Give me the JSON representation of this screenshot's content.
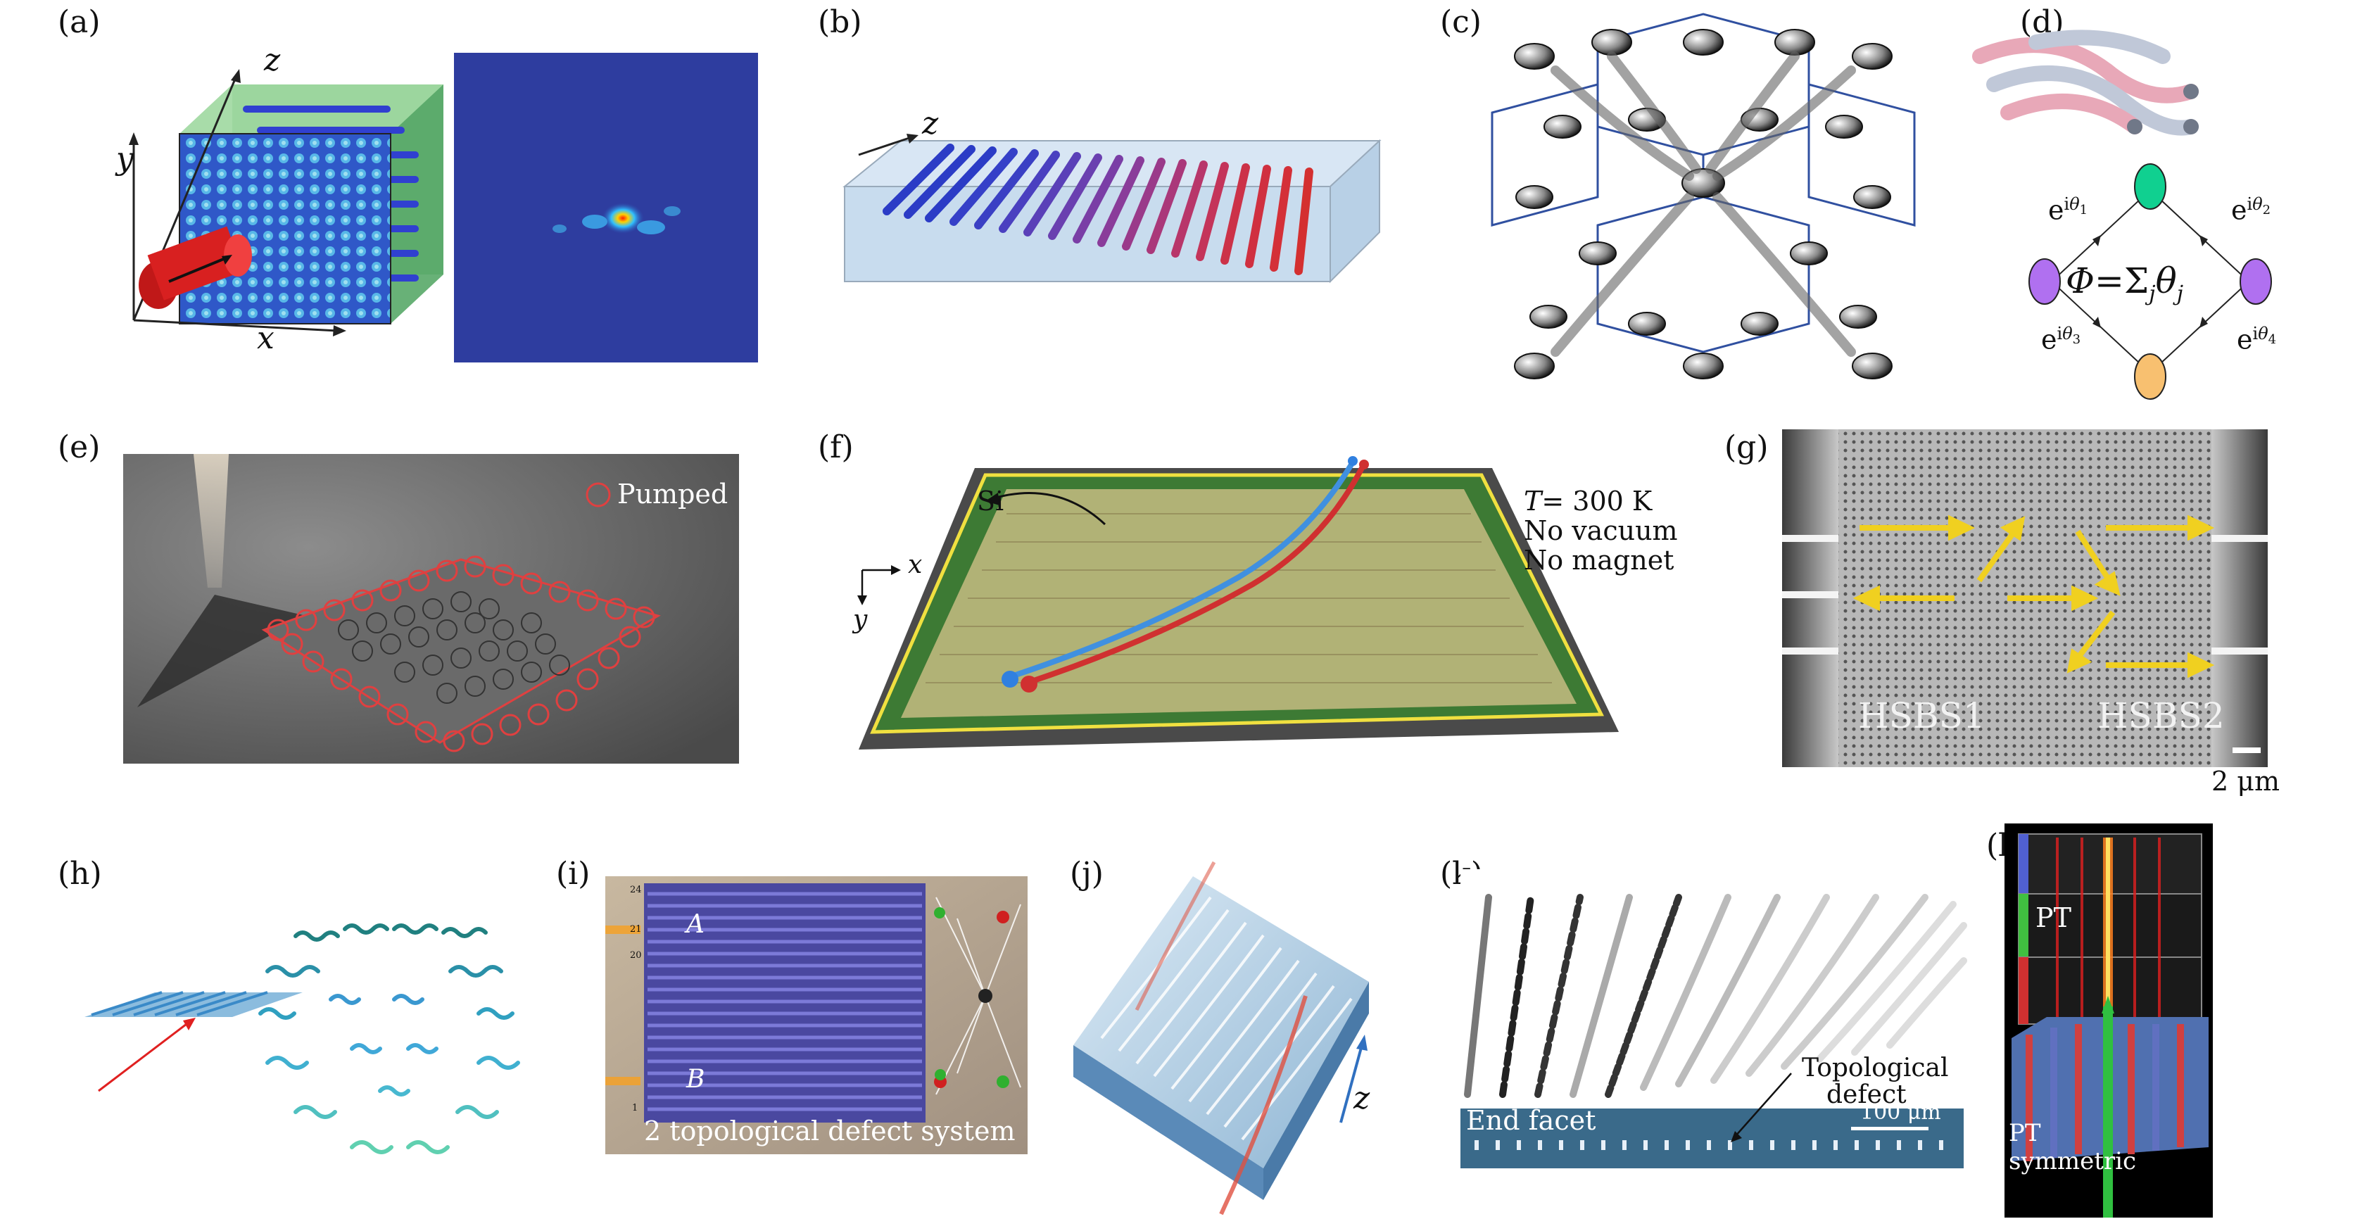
{
  "panel_labels": [
    "(a)",
    "(b)",
    "(c)",
    "(d)",
    "(e)",
    "(f)",
    "(g)",
    "(h)",
    "(i)",
    "(j)",
    "(k)",
    "(l)"
  ],
  "panel_a": {
    "axis_z": "z",
    "axis_y": "y",
    "axis_x": "x"
  },
  "panel_b": {
    "axis_z": "z"
  },
  "panel_d": {
    "phase_1": "e^{iθ1}",
    "phase_2": "e^{iθ2}",
    "phase_3": "e^{iθ3}",
    "phase_4": "e^{iθ4}",
    "flux_eq": "Φ = Σjθj",
    "e": "e",
    "i": "i",
    "theta": "θ",
    "sub1": "1",
    "sub2": "2",
    "sub3": "3",
    "sub4": "4",
    "phi": "Φ",
    "eq": "=",
    "sigma": "Σ",
    "j": "j"
  },
  "panel_e": {
    "legend": "Pumped"
  },
  "panel_f": {
    "material": "Si",
    "temp_T": "T",
    "temp_eq": "= 300 K",
    "cond_1": "No vacuum",
    "cond_2": "No magnet",
    "axis_x": "x",
    "axis_y": "y"
  },
  "panel_g": {
    "label_1": "HSBS1",
    "label_2": "HSBS2",
    "scale_bar": "2 μm"
  },
  "panel_i": {
    "label_A": "A",
    "label_B": "B",
    "caption": "2 topological defect system",
    "tick_labels": [
      "24",
      "21",
      "20",
      "1"
    ]
  },
  "panel_j": {
    "axis_z": "z"
  },
  "panel_k": {
    "annotation_1": "Topological",
    "annotation_2": "defect",
    "facet_label": "End facet",
    "scale_bar": "100 μm"
  },
  "panel_l": {
    "label_top": "PT",
    "label_bottom_1": "PT",
    "label_bottom_2": "symmetric"
  },
  "colors": {
    "blue_rod": "#2b3cc6",
    "red_rod": "#d03030",
    "purple": "#a060e0",
    "green": "#10d090",
    "orange": "#f8c070",
    "yellow_arrow": "#f0d020",
    "ring_red": "#e04040"
  }
}
